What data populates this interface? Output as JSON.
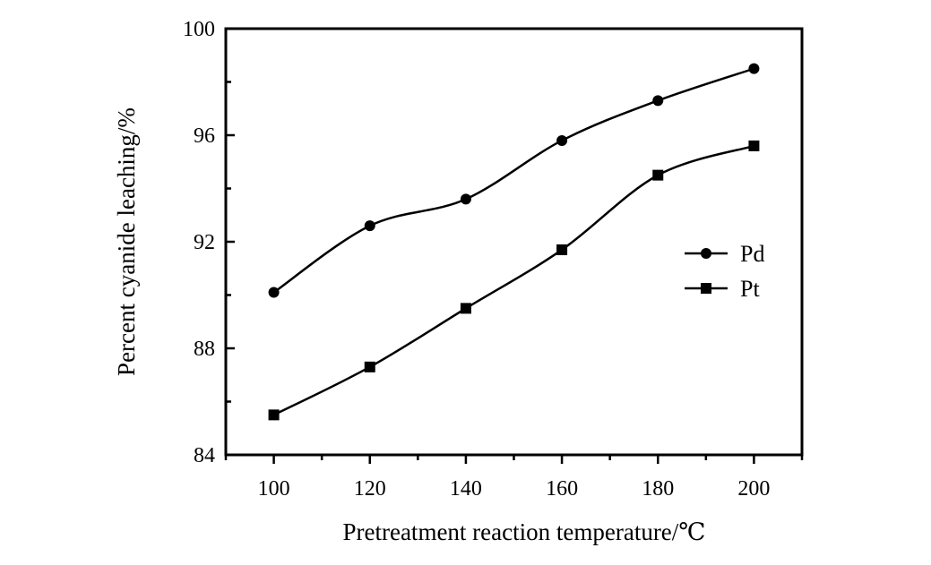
{
  "chart_data": {
    "type": "line",
    "title": "",
    "xlabel": "Pretreatment reaction temperature/℃",
    "ylabel": "Percent cyanide leaching/%",
    "x": [
      100,
      120,
      140,
      160,
      180,
      200
    ],
    "xlim": [
      90,
      210
    ],
    "ylim": [
      84,
      100
    ],
    "xticks": [
      100,
      120,
      140,
      160,
      180,
      200
    ],
    "xtick_labels": [
      "100",
      "120",
      "140",
      "160",
      "180",
      "200"
    ],
    "yticks": [
      84,
      88,
      92,
      96,
      100
    ],
    "ytick_labels": [
      "84",
      "88",
      "92",
      "96",
      "100"
    ],
    "grid": false,
    "legend_position": "right",
    "series": [
      {
        "name": "Pd",
        "marker": "circle",
        "values": [
          90.1,
          92.6,
          93.6,
          95.8,
          97.3,
          98.5
        ]
      },
      {
        "name": "Pt",
        "marker": "square",
        "values": [
          85.5,
          87.3,
          89.5,
          91.7,
          94.5,
          95.6
        ]
      }
    ],
    "colors": {
      "line": "#000000",
      "background": "#ffffff"
    }
  }
}
